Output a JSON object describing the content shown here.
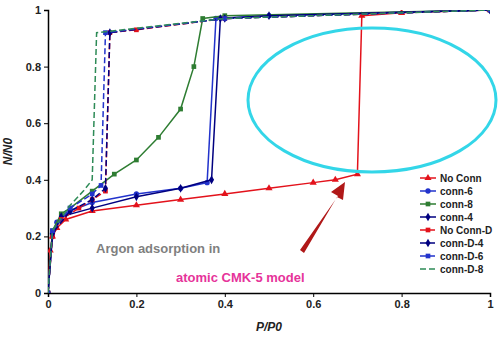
{
  "chart_data": {
    "type": "line",
    "x_label": "P/P0",
    "y_label": "N/N0",
    "annotations": [
      "Argon adsorption in",
      "atomic CMK-5 model"
    ],
    "xlim": [
      0,
      1
    ],
    "xticks": [
      0,
      0.2,
      0.4,
      0.6,
      0.8,
      1
    ],
    "ylim": [
      0,
      1
    ],
    "yticks": [
      0,
      0.2,
      0.4,
      0.6,
      0.8,
      1
    ],
    "grid": false,
    "legend": "right",
    "series": [
      {
        "name": "No Conn",
        "color": "#e3121b",
        "marker": "triangle",
        "line_style": "solid",
        "x": [
          0,
          0.005,
          0.01,
          0.02,
          0.04,
          0.1,
          0.2,
          0.3,
          0.4,
          0.5,
          0.6,
          0.65,
          0.7,
          0.71,
          0.8,
          1
        ],
        "values": [
          0,
          0.15,
          0.2,
          0.23,
          0.26,
          0.29,
          0.31,
          0.33,
          0.35,
          0.37,
          0.39,
          0.4,
          0.42,
          0.98,
          0.99,
          1
        ]
      },
      {
        "name": "conn-6",
        "color": "#2233cc",
        "marker": "circle",
        "line_style": "solid",
        "x": [
          0,
          0.01,
          0.02,
          0.05,
          0.1,
          0.2,
          0.3,
          0.36,
          0.38,
          0.5,
          1
        ],
        "values": [
          0,
          0.21,
          0.25,
          0.29,
          0.32,
          0.35,
          0.37,
          0.39,
          0.97,
          0.98,
          1
        ]
      },
      {
        "name": "conn-8",
        "color": "#2e7d32",
        "marker": "square",
        "line_style": "solid",
        "x": [
          0,
          0.01,
          0.03,
          0.05,
          0.1,
          0.15,
          0.2,
          0.25,
          0.3,
          0.33,
          0.35,
          0.4,
          1
        ],
        "values": [
          0,
          0.22,
          0.28,
          0.3,
          0.36,
          0.42,
          0.47,
          0.55,
          0.65,
          0.8,
          0.97,
          0.98,
          1
        ]
      },
      {
        "name": "conn-4",
        "color": "#000080",
        "marker": "diamond",
        "line_style": "solid",
        "x": [
          0,
          0.01,
          0.03,
          0.1,
          0.2,
          0.3,
          0.37,
          0.39,
          0.5,
          1
        ],
        "values": [
          0,
          0.2,
          0.27,
          0.3,
          0.34,
          0.37,
          0.4,
          0.97,
          0.98,
          1
        ]
      },
      {
        "name": "No Conn-D",
        "color": "#e3121b",
        "marker": "square",
        "line_style": "dashed",
        "x": [
          0,
          0.01,
          0.03,
          0.07,
          0.1,
          0.13,
          0.14,
          0.2,
          0.4,
          1
        ],
        "values": [
          0,
          0.2,
          0.26,
          0.3,
          0.33,
          0.36,
          0.92,
          0.93,
          0.97,
          1
        ]
      },
      {
        "name": "conn-D-4",
        "color": "#000080",
        "marker": "diamond",
        "line_style": "dashed",
        "x": [
          0,
          0.01,
          0.05,
          0.1,
          0.13,
          0.14,
          0.4,
          1
        ],
        "values": [
          0,
          0.21,
          0.29,
          0.33,
          0.37,
          0.92,
          0.97,
          1
        ]
      },
      {
        "name": "conn-D-6",
        "color": "#2233cc",
        "marker": "square",
        "line_style": "dashed",
        "x": [
          0,
          0.01,
          0.05,
          0.1,
          0.12,
          0.13,
          0.4,
          1
        ],
        "values": [
          0,
          0.22,
          0.3,
          0.35,
          0.38,
          0.92,
          0.97,
          1
        ]
      },
      {
        "name": "conn-D-8",
        "color": "#2e8b57",
        "marker": "none",
        "line_style": "dashed",
        "x": [
          0,
          0.01,
          0.05,
          0.08,
          0.1,
          0.11,
          0.4,
          1
        ],
        "values": [
          0,
          0.22,
          0.31,
          0.36,
          0.4,
          0.92,
          0.97,
          1
        ]
      }
    ]
  }
}
